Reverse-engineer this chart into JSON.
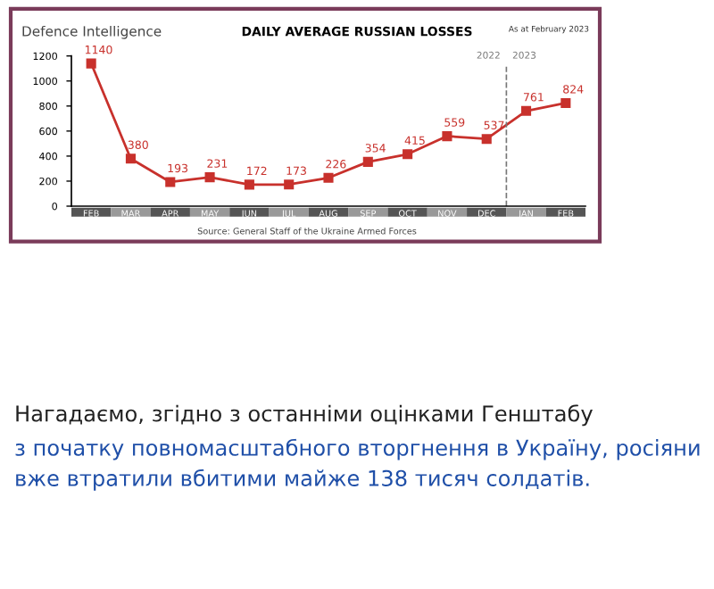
{
  "chart_data": {
    "type": "line",
    "title": "DAILY AVERAGE RUSSIAN LOSSES",
    "categories": [
      "FEB",
      "MAR",
      "APR",
      "MAY",
      "JUN",
      "JUL",
      "AUG",
      "SEP",
      "OCT",
      "NOV",
      "DEC",
      "JAN",
      "FEB"
    ],
    "series": [
      {
        "color": "#c8312c",
        "values": [
          1140,
          380,
          193,
          231,
          172,
          173,
          226,
          354,
          415,
          559,
          537,
          761,
          824
        ]
      }
    ],
    "ylim": [
      0,
      1200
    ],
    "yticks": [
      0,
      200,
      400,
      600,
      800,
      1000,
      1200
    ],
    "marker": "square",
    "line_style": "solid",
    "grid": false,
    "legend": false,
    "data_labels": true,
    "annotations": [
      "2022",
      "2023",
      "Defence Intelligence",
      "As at February 2023",
      "Source: General Staff of the Ukraine Armed Forces",
      "Нагадаємо, згідно з останніми оцінками Генштабу",
      "з початку повномасштабного вторгнення в Україну, росіяни вже втратили вбитими майже 138 тисяч солдатів."
    ]
  }
}
